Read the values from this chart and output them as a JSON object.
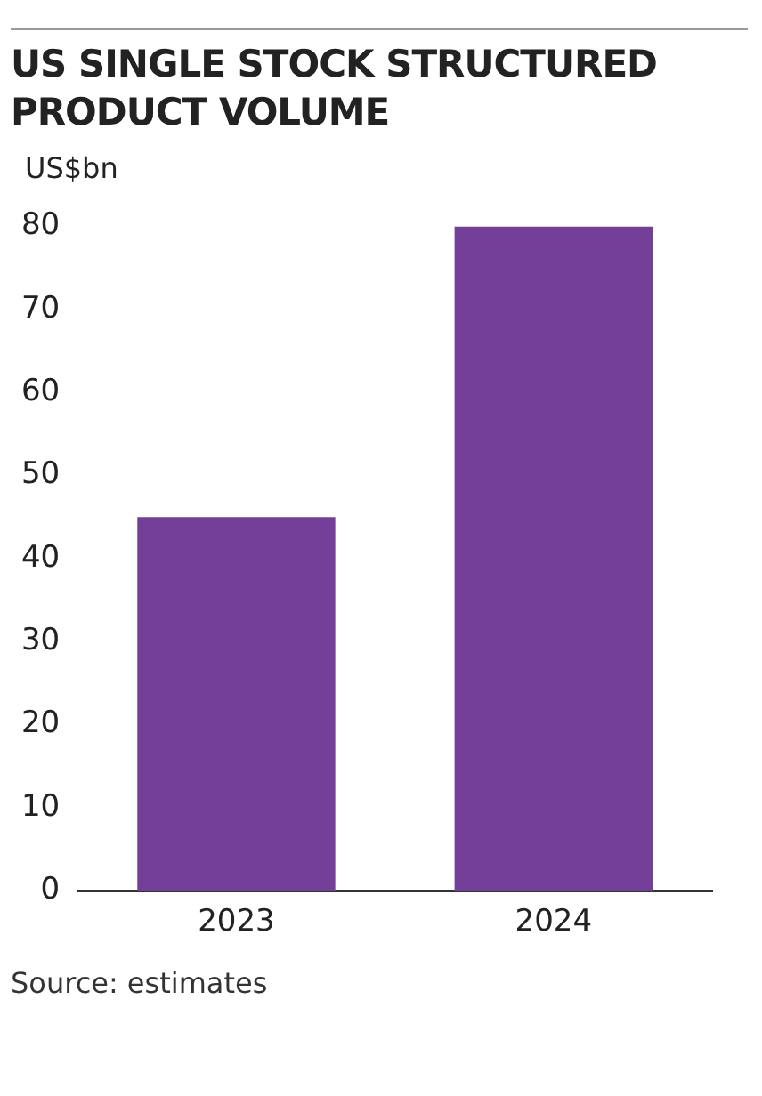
{
  "chart_data": {
    "type": "bar",
    "title": "US SINGLE STOCK STRUCTURED PRODUCT VOLUME",
    "ylabel": "US$bn",
    "categories": [
      "2023",
      "2024"
    ],
    "values": [
      45,
      80
    ],
    "color": "#733f99",
    "ylim": [
      0,
      80
    ],
    "yticks": [
      0,
      10,
      20,
      30,
      40,
      50,
      60,
      70,
      80
    ],
    "grid": false,
    "legend": false,
    "annotations": [
      "Source: estimates"
    ]
  }
}
